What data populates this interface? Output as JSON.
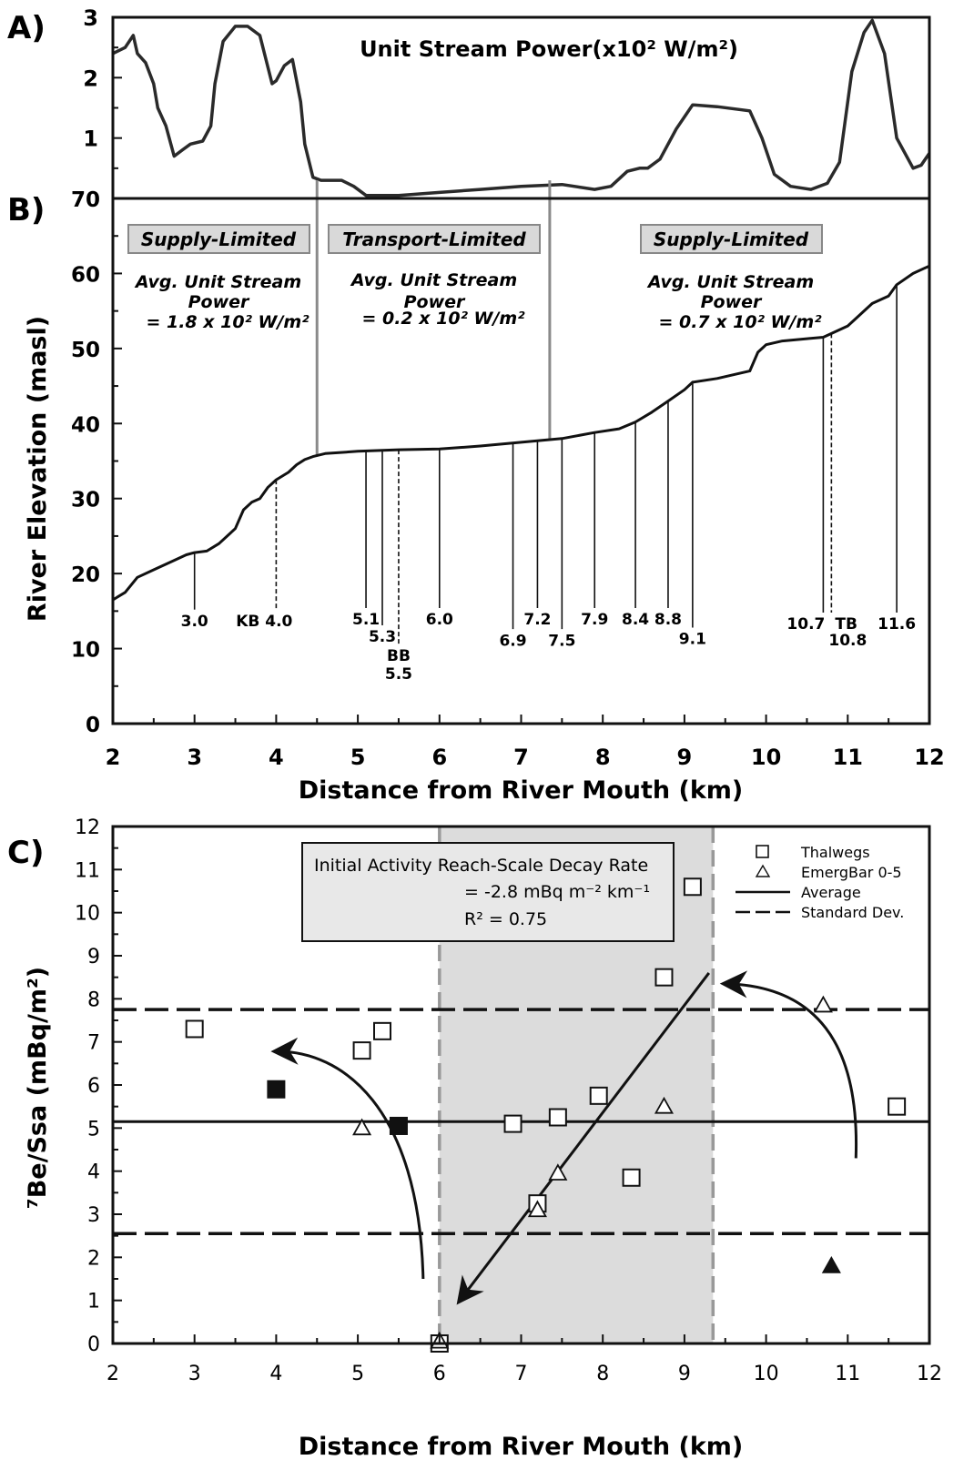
{
  "panel_labels": [
    "A)",
    "B)",
    "C)"
  ],
  "chart_data": [
    {
      "type": "line",
      "id": "A",
      "title": "Unit Stream Power(x10² W/m²)",
      "x": [
        2.0,
        2.15,
        2.25,
        2.3,
        2.4,
        2.5,
        2.55,
        2.65,
        2.75,
        2.85,
        2.95,
        3.1,
        3.2,
        3.25,
        3.35,
        3.5,
        3.65,
        3.8,
        3.95,
        4.0,
        4.1,
        4.2,
        4.3,
        4.35,
        4.45,
        4.55,
        4.8,
        4.95,
        5.1,
        5.5,
        6.0,
        6.5,
        7.0,
        7.5,
        7.9,
        8.1,
        8.3,
        8.45,
        8.55,
        8.7,
        8.9,
        9.1,
        9.4,
        9.8,
        9.95,
        10.1,
        10.3,
        10.55,
        10.75,
        10.9,
        11.05,
        11.2,
        11.3,
        11.45,
        11.6,
        11.8,
        11.9,
        12.0
      ],
      "y": [
        2.4,
        2.5,
        2.7,
        2.4,
        2.25,
        1.9,
        1.5,
        1.2,
        0.7,
        0.8,
        0.9,
        0.95,
        1.2,
        1.9,
        2.6,
        2.85,
        2.85,
        2.7,
        1.9,
        1.95,
        2.2,
        2.3,
        1.6,
        0.9,
        0.35,
        0.3,
        0.3,
        0.2,
        0.05,
        0.05,
        0.1,
        0.15,
        0.2,
        0.23,
        0.15,
        0.2,
        0.45,
        0.5,
        0.5,
        0.65,
        1.15,
        1.55,
        1.52,
        1.45,
        1.0,
        0.4,
        0.2,
        0.15,
        0.25,
        0.6,
        2.1,
        2.75,
        2.95,
        2.4,
        1.0,
        0.5,
        0.55,
        0.75
      ],
      "xlim": [
        2,
        12
      ],
      "ylim": [
        0,
        3
      ],
      "yticks": [
        1,
        2,
        3
      ]
    },
    {
      "type": "line",
      "id": "B",
      "xlabel": "Distance from River Mouth (km)",
      "ylabel": "River Elevation (masl)",
      "xlim": [
        2,
        12
      ],
      "ylim": [
        0,
        70
      ],
      "xticks": [
        2,
        3,
        4,
        5,
        6,
        7,
        8,
        9,
        10,
        11,
        12
      ],
      "yticks": [
        0,
        10,
        20,
        30,
        40,
        50,
        60,
        70
      ],
      "profile_x": [
        2.0,
        2.15,
        2.3,
        2.5,
        2.7,
        2.9,
        3.0,
        3.15,
        3.3,
        3.5,
        3.6,
        3.7,
        3.8,
        3.9,
        4.0,
        4.15,
        4.25,
        4.35,
        4.45,
        4.6,
        5.0,
        5.5,
        6.0,
        6.5,
        7.0,
        7.5,
        7.9,
        8.2,
        8.4,
        8.6,
        8.8,
        9.0,
        9.1,
        9.4,
        9.8,
        9.9,
        10.0,
        10.2,
        10.5,
        10.7,
        10.8,
        11.0,
        11.1,
        11.3,
        11.5,
        11.6,
        11.8,
        12.0
      ],
      "profile_y": [
        16.5,
        17.5,
        19.5,
        20.5,
        21.5,
        22.5,
        22.8,
        23.0,
        24.0,
        26.0,
        28.5,
        29.5,
        30.0,
        31.5,
        32.5,
        33.5,
        34.5,
        35.2,
        35.6,
        36.0,
        36.3,
        36.5,
        36.6,
        37.0,
        37.5,
        38.0,
        38.8,
        39.3,
        40.2,
        41.5,
        43.0,
        44.5,
        45.5,
        46.0,
        47.0,
        49.5,
        50.5,
        51.0,
        51.3,
        51.5,
        52.0,
        53.0,
        54.0,
        56.0,
        57.0,
        58.5,
        60.0,
        61.0
      ],
      "regime_boundaries": [
        4.5,
        7.35
      ],
      "regimes": [
        {
          "label": "Supply-Limited",
          "power_line1": "Avg. Unit Stream",
          "power_line2": "Power",
          "power_line3": "= 1.8 x 10² W/m²"
        },
        {
          "label": "Transport-Limited",
          "power_line1": "Avg. Unit Stream",
          "power_line2": "Power",
          "power_line3": "= 0.2 x 10² W/m²"
        },
        {
          "label": "Supply-Limited",
          "power_line1": "Avg. Unit Stream",
          "power_line2": "Power",
          "power_line3": "= 0.7 x 10² W/m²"
        }
      ],
      "sites": [
        {
          "x": 3.0,
          "label": "3.0",
          "dashed": false,
          "label_y": 13.0
        },
        {
          "x": 4.0,
          "label": "KB 4.0",
          "dashed": true,
          "label_y": 13.0
        },
        {
          "x": 5.1,
          "label": "5.1",
          "dashed": false,
          "label_y": 13.2
        },
        {
          "x": 5.3,
          "label": "5.3",
          "dashed": false,
          "label_y": 10.9
        },
        {
          "x": 5.5,
          "label": "BB",
          "label2": "5.5",
          "dashed": true,
          "label_y": 8.4
        },
        {
          "x": 6.0,
          "label": "6.0",
          "dashed": false,
          "label_y": 13.2
        },
        {
          "x": 6.9,
          "label": "6.9",
          "dashed": false,
          "label_y": 10.4
        },
        {
          "x": 7.2,
          "label": "7.2",
          "dashed": false,
          "label_y": 13.2
        },
        {
          "x": 7.5,
          "label": "7.5",
          "dashed": false,
          "label_y": 10.4
        },
        {
          "x": 7.9,
          "label": "7.9",
          "dashed": false,
          "label_y": 13.2
        },
        {
          "x": 8.4,
          "label": "8.4",
          "dashed": false,
          "label_y": 13.2
        },
        {
          "x": 8.8,
          "label": "8.8",
          "dashed": false,
          "label_y": 13.2
        },
        {
          "x": 9.1,
          "label": "9.1",
          "dashed": false,
          "label_y": 10.6
        },
        {
          "x": 10.7,
          "label": "10.7",
          "dashed": false,
          "label_y": 12.6
        },
        {
          "x": 10.8,
          "label": "TB",
          "label2": "10.8",
          "dashed": true,
          "label_y": 12.6
        },
        {
          "x": 11.6,
          "label": "11.6",
          "dashed": false,
          "label_y": 12.6
        }
      ]
    },
    {
      "type": "scatter",
      "id": "C",
      "xlabel": "Distance from River Mouth (km)",
      "ylabel": "⁷Be/Ssa (mBq/m²)",
      "xlim": [
        2,
        12
      ],
      "ylim": [
        0,
        12
      ],
      "xticks": [
        2,
        3,
        4,
        5,
        6,
        7,
        8,
        9,
        10,
        11,
        12
      ],
      "yticks": [
        0,
        1,
        2,
        3,
        4,
        5,
        6,
        7,
        8,
        9,
        10,
        11,
        12
      ],
      "legend_position": "top-right",
      "legend": [
        "Thalwegs",
        "EmergBar 0-5",
        "Average",
        "Standard Dev."
      ],
      "annotation_line1": "Initial Activity Reach-Scale  Decay Rate",
      "annotation_line2": "= -2.8 mBq m⁻² km⁻¹",
      "annotation_line3": "R² = 0.75",
      "average": 5.15,
      "std_dev_upper": 7.75,
      "std_dev_lower": 2.55,
      "shaded_x_range": [
        6.0,
        9.35
      ],
      "series": [
        {
          "name": "Thalwegs",
          "marker": "square-open",
          "points": [
            [
              3.0,
              7.3
            ],
            [
              5.05,
              6.8
            ],
            [
              5.3,
              7.25
            ],
            [
              6.0,
              0.0
            ],
            [
              6.9,
              5.1
            ],
            [
              7.2,
              3.25
            ],
            [
              7.45,
              5.25
            ],
            [
              7.95,
              5.75
            ],
            [
              8.35,
              3.85
            ],
            [
              8.75,
              8.5
            ],
            [
              9.1,
              10.6
            ],
            [
              11.6,
              5.5
            ]
          ]
        },
        {
          "name": "EmergBar 0-5",
          "marker": "triangle-open",
          "points": [
            [
              5.05,
              5.0
            ],
            [
              6.0,
              0.05
            ],
            [
              7.2,
              3.1
            ],
            [
              7.45,
              3.95
            ],
            [
              8.75,
              5.5
            ],
            [
              10.7,
              7.85
            ]
          ]
        },
        {
          "marker": "square-filled",
          "points": [
            [
              4.0,
              5.9
            ],
            [
              5.5,
              5.05
            ]
          ]
        },
        {
          "marker": "triangle-filled",
          "points": [
            [
              10.8,
              1.8
            ]
          ]
        }
      ]
    }
  ]
}
